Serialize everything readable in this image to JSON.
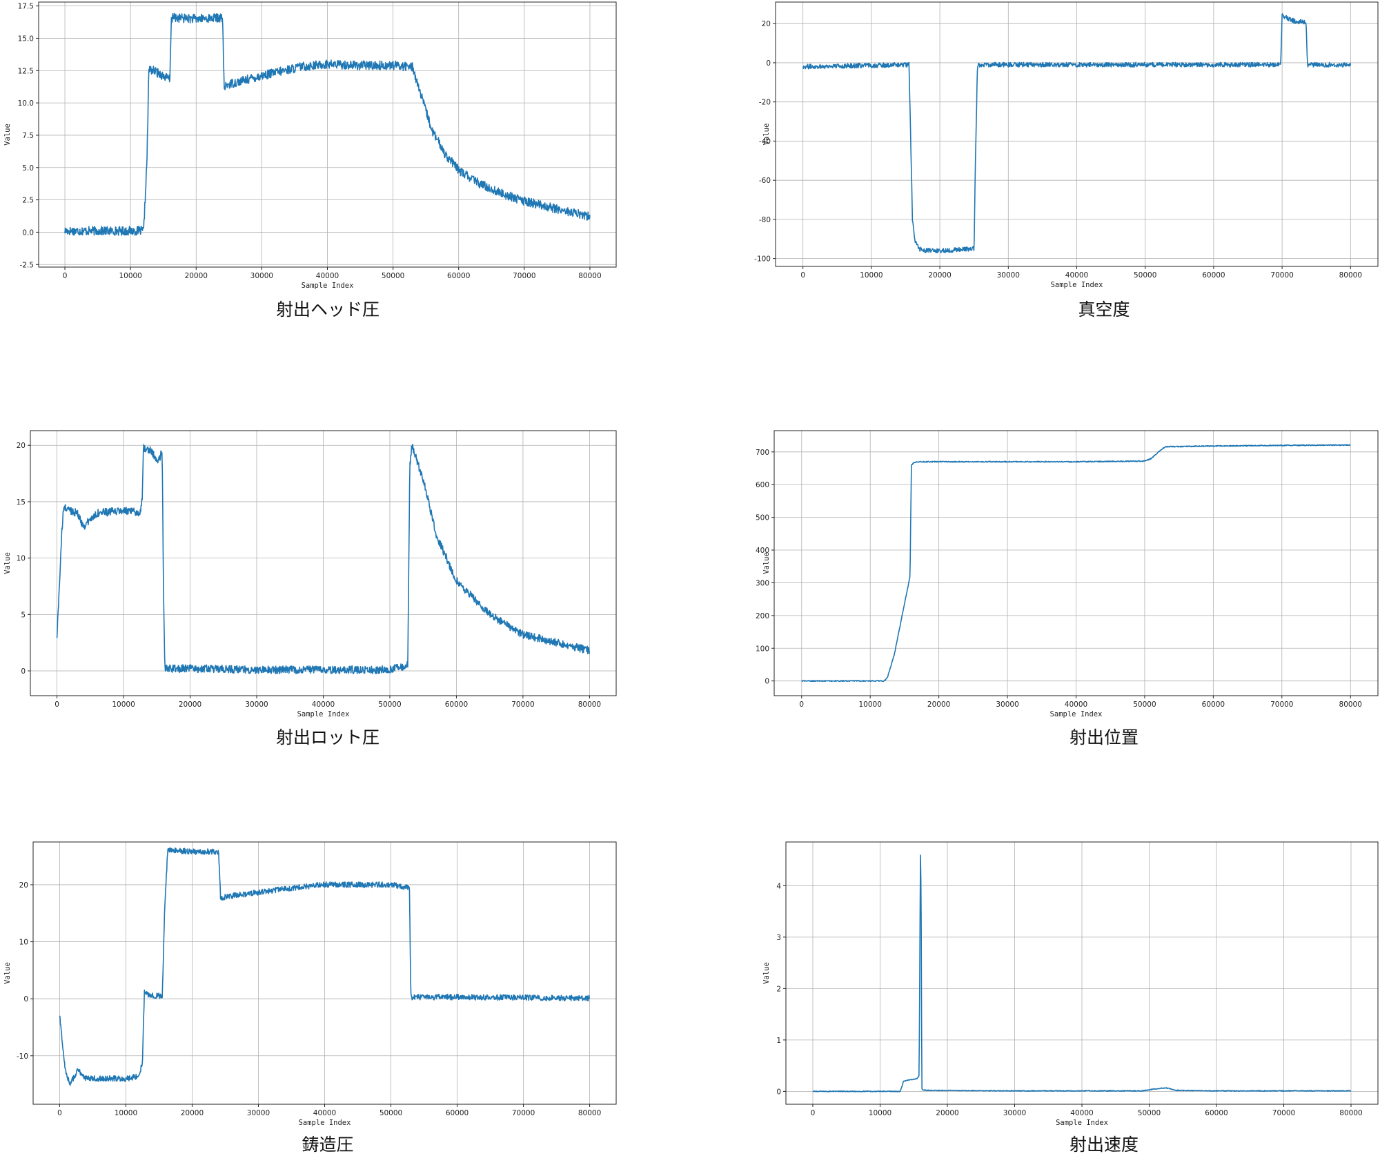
{
  "chart_data": [
    {
      "type": "line",
      "caption": "射出ヘッド圧",
      "xlabel": "Sample Index",
      "ylabel": "Value",
      "xlim": [
        -4000,
        84000
      ],
      "ylim": [
        -2.7,
        17.8
      ],
      "xticks": [
        0,
        10000,
        20000,
        30000,
        40000,
        50000,
        60000,
        70000,
        80000
      ],
      "yticks": [
        -2.5,
        0.0,
        2.5,
        5.0,
        7.5,
        10.0,
        12.5,
        15.0,
        17.5
      ],
      "ytick_labels": [
        "-2.5",
        "0.0",
        "2.5",
        "5.0",
        "7.5",
        "10.0",
        "12.5",
        "15.0",
        "17.5"
      ],
      "grid": true,
      "color": "#1f77b4",
      "noise": 0.35,
      "series": [
        {
          "x": [
            0,
            12000,
            12500,
            12800,
            13500,
            15000,
            16000,
            16200,
            16600,
            20000,
            24000,
            24300,
            24600,
            30000,
            36000,
            40000,
            45000,
            50000,
            53000,
            54000,
            56000,
            58000,
            60000,
            63000,
            66000,
            70000,
            75000,
            80000
          ],
          "y": [
            0.1,
            0.1,
            5.5,
            12.6,
            12.5,
            12.1,
            11.8,
            16.5,
            16.6,
            16.5,
            16.6,
            11.0,
            11.4,
            12.1,
            12.8,
            13.0,
            12.9,
            12.9,
            12.8,
            11.0,
            7.8,
            6.0,
            4.8,
            3.8,
            3.1,
            2.4,
            1.8,
            1.2
          ]
        }
      ]
    },
    {
      "type": "line",
      "caption": "真空度",
      "xlabel": "Sample Index",
      "ylabel": "Value",
      "xlim": [
        -4000,
        84000
      ],
      "ylim": [
        -104,
        31
      ],
      "xticks": [
        0,
        10000,
        20000,
        30000,
        40000,
        50000,
        60000,
        70000,
        80000
      ],
      "yticks": [
        -100,
        -80,
        -60,
        -40,
        -20,
        0,
        20
      ],
      "ytick_labels": [
        "-100",
        "-80",
        "-60",
        "-40",
        "-20",
        "0",
        "20"
      ],
      "grid": true,
      "color": "#1f77b4",
      "noise": 1.2,
      "series": [
        {
          "x": [
            0,
            15500,
            16000,
            16300,
            17000,
            18000,
            20000,
            25000,
            25200,
            25500,
            30000,
            40000,
            50000,
            60000,
            69800,
            70000,
            72000,
            73500,
            73700,
            80000
          ],
          "y": [
            -2,
            -1,
            -80,
            -90,
            -95,
            -96,
            -96,
            -95,
            -50,
            -1,
            -1,
            -1,
            -1,
            -1,
            -1,
            24,
            21,
            21,
            -1,
            -1
          ]
        }
      ]
    },
    {
      "type": "line",
      "caption": "射出ロット圧",
      "xlabel": "Sample Index",
      "ylabel": "Value",
      "xlim": [
        -4000,
        84000
      ],
      "ylim": [
        -2.2,
        21.3
      ],
      "xticks": [
        0,
        10000,
        20000,
        30000,
        40000,
        50000,
        60000,
        70000,
        80000
      ],
      "yticks": [
        0,
        5,
        10,
        15,
        20
      ],
      "ytick_labels": [
        "0",
        "5",
        "10",
        "15",
        "20"
      ],
      "grid": true,
      "color": "#1f77b4",
      "noise": 0.35,
      "series": [
        {
          "x": [
            0,
            700,
            1000,
            3000,
            4000,
            6000,
            10000,
            12500,
            12800,
            13000,
            14000,
            15200,
            15800,
            16000,
            16200,
            20000,
            30000,
            40000,
            50000,
            52700,
            53000,
            53300,
            55000,
            57000,
            60000,
            65000,
            70000,
            75000,
            80000
          ],
          "y": [
            3,
            12,
            14.5,
            14,
            12.8,
            14,
            14.2,
            14,
            15.5,
            19.8,
            19.6,
            18.5,
            19.5,
            7,
            0.2,
            0.2,
            0.1,
            0.1,
            0.1,
            0.5,
            18,
            20,
            17,
            12,
            8,
            5,
            3.2,
            2.5,
            1.8
          ]
        }
      ]
    },
    {
      "type": "line",
      "caption": "射出位置",
      "xlabel": "Sample Index",
      "ylabel": "Value",
      "xlim": [
        -4000,
        84000
      ],
      "ylim": [
        -45,
        765
      ],
      "xticks": [
        0,
        10000,
        20000,
        30000,
        40000,
        50000,
        60000,
        70000,
        80000
      ],
      "yticks": [
        0,
        100,
        200,
        300,
        400,
        500,
        600,
        700
      ],
      "ytick_labels": [
        "0",
        "100",
        "200",
        "300",
        "400",
        "500",
        "600",
        "700"
      ],
      "grid": true,
      "color": "#1f77b4",
      "noise": 1.5,
      "series": [
        {
          "x": [
            0,
            12000,
            12500,
            13500,
            15800,
            16000,
            16400,
            17000,
            30000,
            40000,
            50000,
            51000,
            52000,
            53000,
            60000,
            70000,
            80000
          ],
          "y": [
            0,
            0,
            10,
            80,
            320,
            660,
            668,
            670,
            670,
            670,
            672,
            680,
            700,
            716,
            718,
            720,
            721
          ]
        }
      ]
    },
    {
      "type": "line",
      "caption": "鋳造圧",
      "xlabel": "Sample Index",
      "ylabel": "Value",
      "xlim": [
        -4000,
        84000
      ],
      "ylim": [
        -18.5,
        27.5
      ],
      "xticks": [
        0,
        10000,
        20000,
        30000,
        40000,
        50000,
        60000,
        70000,
        80000
      ],
      "yticks": [
        -10,
        0,
        10,
        20
      ],
      "ytick_labels": [
        "-10",
        "0",
        "10",
        "20"
      ],
      "grid": true,
      "color": "#1f77b4",
      "noise": 0.5,
      "series": [
        {
          "x": [
            0,
            800,
            1500,
            2800,
            4000,
            6000,
            10000,
            12000,
            12500,
            12800,
            13500,
            15500,
            15800,
            16300,
            17000,
            20000,
            24000,
            24300,
            24600,
            30000,
            36000,
            40000,
            45000,
            50000,
            52800,
            53000,
            53200,
            60000,
            70000,
            80000
          ],
          "y": [
            -3,
            -12,
            -15,
            -12.5,
            -14,
            -14,
            -14,
            -13.5,
            -11,
            1.5,
            0.5,
            0.5,
            14,
            26,
            26,
            25.8,
            25.8,
            17.5,
            17.8,
            18.7,
            19.5,
            20,
            20,
            20,
            19.5,
            0.5,
            0.3,
            0.3,
            0.2,
            0.1
          ]
        }
      ]
    },
    {
      "type": "line",
      "caption": "射出速度",
      "xlabel": "Sample Index",
      "ylabel": "Value",
      "xlim": [
        -4000,
        84000
      ],
      "ylim": [
        -0.25,
        4.85
      ],
      "xticks": [
        0,
        10000,
        20000,
        30000,
        40000,
        50000,
        60000,
        70000,
        80000
      ],
      "yticks": [
        0,
        1,
        2,
        3,
        4
      ],
      "ytick_labels": [
        "0",
        "1",
        "2",
        "3",
        "4"
      ],
      "grid": true,
      "color": "#1f77b4",
      "noise": 0.008,
      "series": [
        {
          "x": [
            0,
            13000,
            13500,
            15500,
            15800,
            16000,
            16100,
            16200,
            16400,
            17000,
            30000,
            49000,
            51000,
            52500,
            54000,
            60000,
            80000
          ],
          "y": [
            0,
            0,
            0.2,
            0.25,
            0.3,
            4.6,
            3.8,
            0.05,
            0.03,
            0.02,
            0.01,
            0.01,
            0.05,
            0.07,
            0.02,
            0.01,
            0.01
          ]
        }
      ]
    }
  ]
}
